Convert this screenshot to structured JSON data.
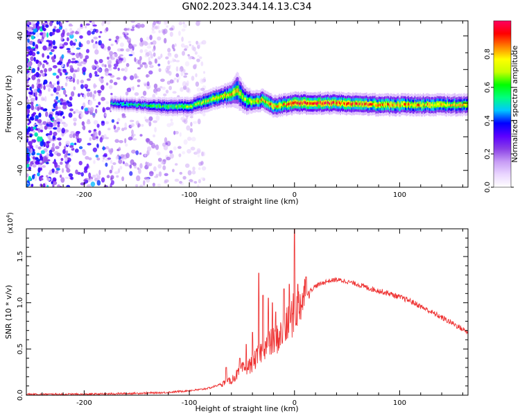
{
  "figure_title": "GN02.2023.344.14.13.C34",
  "chart_data": [
    {
      "type": "heatmap",
      "xlabel": "Height of straight line (km)",
      "ylabel": "Frequency (Hz)",
      "xlim": [
        -255,
        165
      ],
      "ylim": [
        -50,
        49
      ],
      "x_ticks": [
        -200,
        -100,
        0,
        100
      ],
      "y_ticks": [
        -40,
        -20,
        0,
        20,
        40
      ],
      "colorbar": {
        "label": "Normalized spectral amplitude",
        "range": [
          0,
          1
        ],
        "ticks": [
          0.0,
          0.2,
          0.4,
          0.6,
          0.8
        ],
        "colormap": [
          "#ffffff",
          "#ead6ff",
          "#c79cf5",
          "#8a3fe6",
          "#5b00ff",
          "#0000ff",
          "#00c8ff",
          "#00ff80",
          "#00ff00",
          "#c8ff00",
          "#ffff00",
          "#ff8000",
          "#ff0000",
          "#ff0060"
        ]
      },
      "noise_region": {
        "x_range": [
          -255,
          -95
        ],
        "description": "broadband low amplitude scatter"
      },
      "signal_band": [
        {
          "x": -175,
          "f_center": 0,
          "f_halfwidth": 2,
          "amp": 0.5
        },
        {
          "x": -150,
          "f_center": -1,
          "f_halfwidth": 2,
          "amp": 0.55
        },
        {
          "x": -125,
          "f_center": -2,
          "f_halfwidth": 2.5,
          "amp": 0.6
        },
        {
          "x": -100,
          "f_center": -2,
          "f_halfwidth": 2.5,
          "amp": 0.65
        },
        {
          "x": -85,
          "f_center": 1,
          "f_halfwidth": 3,
          "amp": 0.7
        },
        {
          "x": -70,
          "f_center": 4,
          "f_halfwidth": 3,
          "amp": 0.75
        },
        {
          "x": -60,
          "f_center": 5,
          "f_halfwidth": 3.5,
          "amp": 0.8
        },
        {
          "x": -55,
          "f_center": 8,
          "f_halfwidth": 5,
          "amp": 0.75
        },
        {
          "x": -48,
          "f_center": 2,
          "f_halfwidth": 4,
          "amp": 0.7
        },
        {
          "x": -40,
          "f_center": 1,
          "f_halfwidth": 3,
          "amp": 0.75
        },
        {
          "x": -30,
          "f_center": 2,
          "f_halfwidth": 3,
          "amp": 0.8
        },
        {
          "x": -20,
          "f_center": -2,
          "f_halfwidth": 3,
          "amp": 0.8
        },
        {
          "x": -10,
          "f_center": -1,
          "f_halfwidth": 3,
          "amp": 0.85
        },
        {
          "x": 0,
          "f_center": 0,
          "f_halfwidth": 3,
          "amp": 0.95
        },
        {
          "x": 40,
          "f_center": 0,
          "f_halfwidth": 3,
          "amp": 0.9
        },
        {
          "x": 80,
          "f_center": -1,
          "f_halfwidth": 3,
          "amp": 0.85
        },
        {
          "x": 120,
          "f_center": -1,
          "f_halfwidth": 3,
          "amp": 0.8
        },
        {
          "x": 165,
          "f_center": -1,
          "f_halfwidth": 3,
          "amp": 0.75
        }
      ]
    },
    {
      "type": "line",
      "xlabel": "Height of straight line (km)",
      "ylabel": "SNR (10 * v/v)",
      "y_multiplier_label": "(x10",
      "y_multiplier_exponent": "4",
      "xlim": [
        -255,
        165
      ],
      "ylim": [
        0,
        1.8
      ],
      "x_ticks": [
        -200,
        -100,
        0,
        100
      ],
      "y_ticks": [
        0.0,
        0.5,
        1.0,
        1.5
      ],
      "y_tick_labels": [
        "0.0",
        "0.5",
        "1.0",
        "1.5"
      ],
      "color": "#ee3333",
      "series": [
        {
          "x": [
            -255,
            -200,
            -150,
            -120,
            -100,
            -90,
            -80,
            -70,
            -60,
            -55,
            -50,
            -45,
            -40,
            -35,
            -30,
            -25,
            -20,
            -15,
            -10,
            -5,
            0,
            5,
            10,
            20,
            30,
            40,
            50,
            60,
            70,
            80,
            90,
            100,
            110,
            120,
            130,
            140,
            150,
            165
          ],
          "y": [
            0.01,
            0.01,
            0.02,
            0.03,
            0.05,
            0.06,
            0.08,
            0.12,
            0.16,
            0.22,
            0.28,
            0.3,
            0.34,
            0.42,
            0.5,
            0.55,
            0.58,
            0.62,
            0.7,
            0.78,
            0.9,
            1.0,
            1.08,
            1.18,
            1.23,
            1.25,
            1.23,
            1.2,
            1.16,
            1.13,
            1.1,
            1.06,
            1.02,
            0.96,
            0.9,
            0.84,
            0.78,
            0.68
          ]
        }
      ],
      "spikes": [
        {
          "x": -65,
          "y": 0.3
        },
        {
          "x": -52,
          "y": 0.4
        },
        {
          "x": -46,
          "y": 0.55
        },
        {
          "x": -40,
          "y": 0.68
        },
        {
          "x": -34,
          "y": 1.32
        },
        {
          "x": -30,
          "y": 1.08
        },
        {
          "x": -25,
          "y": 1.05
        },
        {
          "x": -21,
          "y": 1.0
        },
        {
          "x": -18,
          "y": 0.9
        },
        {
          "x": -10,
          "y": 1.15
        },
        {
          "x": -5,
          "y": 1.2
        },
        {
          "x": 0,
          "y": 1.8
        },
        {
          "x": 3,
          "y": 1.2
        },
        {
          "x": 11,
          "y": 1.28
        },
        {
          "x": 14,
          "y": 1.05
        }
      ]
    }
  ]
}
